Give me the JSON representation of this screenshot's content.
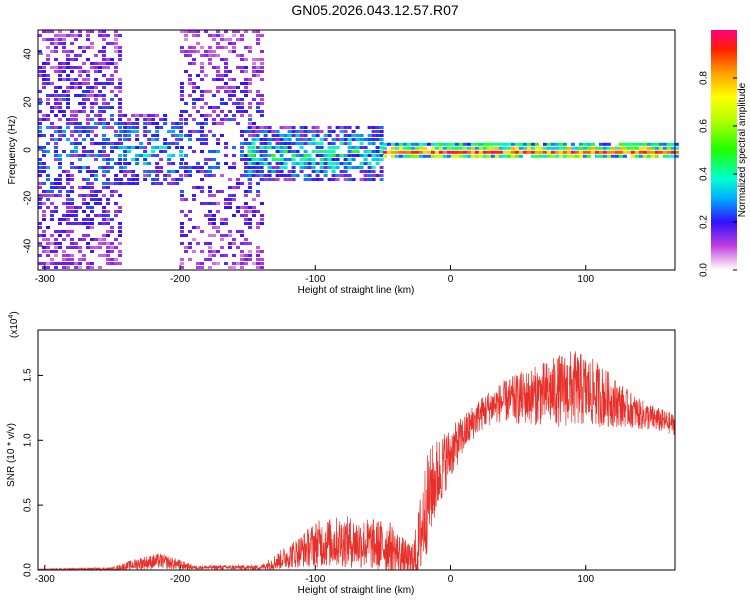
{
  "title": "GN05.2026.043.12.57.R07",
  "chart_data": [
    {
      "type": "heatmap",
      "name": "spectrogram",
      "xlabel": "Height of straight line (km)",
      "ylabel": "Frequency (Hz)",
      "xlim": [
        -305,
        166
      ],
      "ylim": [
        -50,
        50
      ],
      "xticks": [
        "-300",
        "-200",
        "-100",
        "0",
        "100"
      ],
      "xtick_values": [
        -300,
        -200,
        -100,
        0,
        100
      ],
      "yticks": [
        "-40",
        "-20",
        "0",
        "20",
        "40"
      ],
      "ytick_values": [
        -40,
        -20,
        0,
        20,
        40
      ],
      "description_regions": [
        {
          "x_range": [
            -305,
            -245
          ],
          "freq_range": [
            -50,
            50
          ],
          "amplitude": 0.22,
          "density": 0.55
        },
        {
          "x_range": [
            -245,
            -200
          ],
          "freq_range": [
            -15,
            15
          ],
          "amplitude": 0.28,
          "density": 0.6
        },
        {
          "x_range": [
            -200,
            -140
          ],
          "freq_range": [
            -50,
            50
          ],
          "amplitude": 0.2,
          "density": 0.4
        },
        {
          "x_range": [
            -150,
            -50
          ],
          "freq_range": [
            -12,
            10
          ],
          "amplitude": 0.35,
          "density": 0.75
        },
        {
          "x_range": [
            -50,
            166
          ],
          "freq_range": [
            -3,
            3
          ],
          "amplitude": 0.7,
          "density": 0.95
        }
      ],
      "colorbar": {
        "label": "Normalized spectral amplitude",
        "ticks": [
          "0.0",
          "0.2",
          "0.4",
          "0.6",
          "0.8"
        ],
        "tick_values": [
          0.0,
          0.2,
          0.4,
          0.6,
          0.8
        ],
        "range": [
          0,
          1
        ]
      }
    },
    {
      "type": "line",
      "name": "snr",
      "xlabel": "Height of straight line (km)",
      "ylabel": "SNR (10 * v/v)",
      "multiplier_label": "(x10",
      "multiplier_exponent": "4",
      "multiplier_close": ")",
      "xlim": [
        -305,
        166
      ],
      "ylim": [
        0,
        1.85
      ],
      "xticks": [
        "-300",
        "-200",
        "-100",
        "0",
        "100"
      ],
      "xtick_values": [
        -300,
        -200,
        -100,
        0,
        100
      ],
      "yticks": [
        "0.0",
        "0.5",
        "1.0",
        "1.5"
      ],
      "ytick_values": [
        0.0,
        0.5,
        1.0,
        1.5
      ],
      "color": "#e8302a",
      "envelope": {
        "x": [
          -305,
          -250,
          -230,
          -215,
          -200,
          -190,
          -140,
          -130,
          -110,
          -100,
          -80,
          -60,
          -45,
          -35,
          -30,
          -25,
          -20,
          -15,
          -10,
          -5,
          0,
          10,
          20,
          30,
          40,
          50,
          60,
          70,
          80,
          90,
          100,
          110,
          120,
          130,
          140,
          150,
          166
        ],
        "base": [
          0.005,
          0.01,
          0.05,
          0.07,
          0.04,
          0.02,
          0.02,
          0.06,
          0.15,
          0.2,
          0.22,
          0.2,
          0.18,
          0.1,
          0.05,
          0.1,
          0.4,
          0.6,
          0.72,
          0.82,
          0.9,
          1.05,
          1.18,
          1.26,
          1.3,
          1.32,
          1.34,
          1.36,
          1.38,
          1.4,
          1.38,
          1.35,
          1.3,
          1.25,
          1.2,
          1.17,
          1.12
        ],
        "amp": [
          0.003,
          0.01,
          0.05,
          0.06,
          0.04,
          0.015,
          0.02,
          0.06,
          0.13,
          0.18,
          0.2,
          0.2,
          0.2,
          0.15,
          0.15,
          0.25,
          0.4,
          0.35,
          0.3,
          0.25,
          0.2,
          0.15,
          0.13,
          0.14,
          0.16,
          0.2,
          0.22,
          0.25,
          0.28,
          0.3,
          0.28,
          0.25,
          0.2,
          0.15,
          0.12,
          0.1,
          0.08
        ]
      }
    }
  ]
}
